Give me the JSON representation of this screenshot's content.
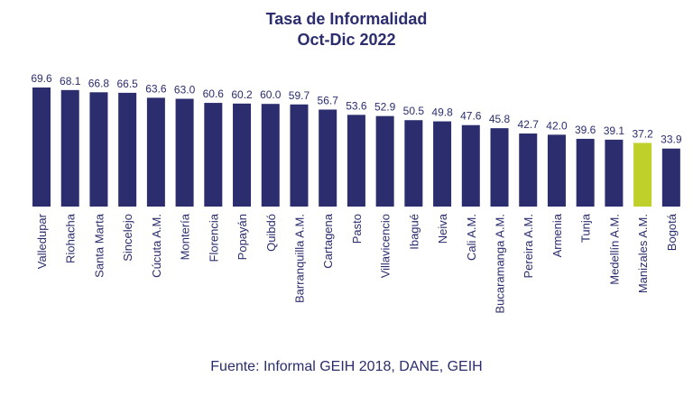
{
  "chart_data": {
    "type": "bar",
    "title": "Tasa de Informalidad",
    "subtitle": "Oct-Dic 2022",
    "xlabel": "",
    "ylabel": "",
    "categories": [
      "Valledupar",
      "Riohacha",
      "Santa Marta",
      "Sincelejo",
      "Cúcuta A.M.",
      "Montería",
      "Florencia",
      "Popayán",
      "Quibdó",
      "Barranquilla A.M.",
      "Cartagena",
      "Pasto",
      "Villavicencio",
      "Ibagué",
      "Neiva",
      "Cali A.M.",
      "Bucaramanga A.M.",
      "Pereira A.M.",
      "Armenia",
      "Tunja",
      "Medellín A.M.",
      "Manizales A.M.",
      "Bogotá"
    ],
    "values": [
      69.6,
      68.1,
      66.8,
      66.5,
      63.6,
      63.0,
      60.6,
      60.2,
      60.0,
      59.7,
      56.7,
      53.6,
      52.9,
      50.5,
      49.8,
      47.6,
      45.8,
      42.7,
      42.0,
      39.6,
      39.1,
      37.2,
      33.9
    ],
    "value_labels": [
      "69.6",
      "68.1",
      "66.8",
      "66.5",
      "63.6",
      "63.0",
      "60.6",
      "60.2",
      "60.0",
      "59.7",
      "56.7",
      "53.6",
      "52.9",
      "50.5",
      "49.8",
      "47.6",
      "45.8",
      "42.7",
      "42.0",
      "39.6",
      "39.1",
      "37.2",
      "33.9"
    ],
    "highlight_index": 21,
    "colors": {
      "bar": "#2b2d6e",
      "highlight": "#bfd02a",
      "text": "#2b2d6e"
    },
    "legend": "none",
    "grid": false
  },
  "source": "Fuente: Informal GEIH 2018, DANE, GEIH"
}
